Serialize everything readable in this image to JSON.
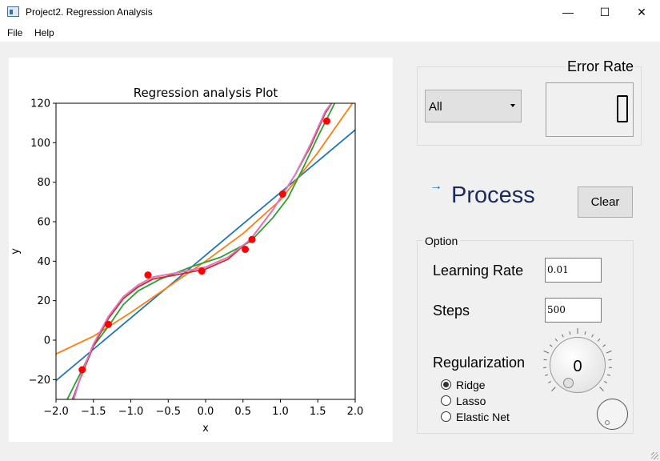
{
  "window": {
    "title": "Project2. Regression Analysis",
    "minimize_glyph": "—",
    "maximize_glyph": "☐",
    "close_glyph": "✕"
  },
  "menu": {
    "items": [
      "File",
      "Help"
    ]
  },
  "error_rate": {
    "title": "Error Rate",
    "value": "0"
  },
  "dataset_combo": {
    "selected": "All"
  },
  "process": {
    "label": "Process",
    "arrow_glyph": "→"
  },
  "clear_button": {
    "label": "Clear"
  },
  "options": {
    "title": "Option",
    "learning_rate_label": "Learning Rate",
    "learning_rate_value": "0.01",
    "steps_label": "Steps",
    "steps_value": "500",
    "regularization_label": "Regularization",
    "regularization_options": [
      "Ridge",
      "Lasso",
      "Elastic Net"
    ],
    "regularization_selected": "Ridge",
    "dial_value": "0"
  },
  "chart_data": {
    "type": "line",
    "title": "Regression analysis Plot",
    "xlabel": "x",
    "ylabel": "y",
    "xlim": [
      -2.0,
      2.0
    ],
    "ylim": [
      -30,
      120
    ],
    "xticks": [
      "−2.0",
      "−1.5",
      "−1.0",
      "−0.5",
      "0.0",
      "0.5",
      "1.0",
      "1.5",
      "2.0"
    ],
    "yticks": [
      "−20",
      "0",
      "20",
      "40",
      "60",
      "80",
      "100",
      "120"
    ],
    "points": {
      "color": "#ff0000",
      "x": [
        -1.65,
        -1.3,
        -0.77,
        -0.05,
        0.53,
        0.62,
        1.03,
        1.62
      ],
      "y": [
        -15,
        8,
        33,
        35,
        46,
        51,
        74,
        111
      ]
    },
    "series": [
      {
        "color": "#1f77b4",
        "x": [
          -2.0,
          2.0
        ],
        "y": [
          -20.5,
          106.5
        ]
      },
      {
        "color": "#ff7f0e",
        "x": [
          -2.0,
          -1.5,
          -1.0,
          -0.5,
          0.0,
          0.5,
          1.0,
          1.5,
          2.0
        ],
        "y": [
          -7,
          2,
          14,
          27,
          40,
          54,
          71,
          95,
          122
        ]
      },
      {
        "color": "#2ca02c",
        "x": [
          -1.85,
          -1.65,
          -1.5,
          -1.3,
          -1.1,
          -0.9,
          -0.6,
          -0.2,
          0.2,
          0.6,
          0.9,
          1.1,
          1.3,
          1.5,
          1.7,
          1.75
        ],
        "y": [
          -30,
          -15,
          -3,
          7,
          18,
          25,
          31,
          37,
          42,
          50,
          62,
          72,
          87,
          103,
          118,
          122
        ]
      },
      {
        "color": "#d62728",
        "x": [
          -1.78,
          -1.65,
          -1.5,
          -1.3,
          -1.1,
          -0.9,
          -0.7,
          -0.4,
          0.0,
          0.3,
          0.6,
          0.9,
          1.2,
          1.4,
          1.6,
          1.72
        ],
        "y": [
          -30,
          -17,
          -3,
          11,
          21,
          27,
          31,
          33,
          36,
          41,
          51,
          66,
          84,
          98,
          115,
          122
        ]
      },
      {
        "color": "#9467bd",
        "x": [
          -1.77,
          -1.65,
          -1.5,
          -1.3,
          -1.1,
          -0.9,
          -0.7,
          -0.4,
          0.0,
          0.3,
          0.6,
          0.9,
          1.2,
          1.4,
          1.6,
          1.72
        ],
        "y": [
          -30,
          -16,
          -2,
          12,
          22,
          28,
          32,
          34,
          37,
          42,
          51,
          66,
          84,
          99,
          116,
          122
        ]
      },
      {
        "color": "#e377c2",
        "x": [
          -1.76,
          -1.65,
          -1.5,
          -1.3,
          -1.1,
          -0.9,
          -0.7,
          -0.4,
          0.0,
          0.3,
          0.6,
          0.9,
          1.2,
          1.4,
          1.6,
          1.72
        ],
        "y": [
          -30,
          -16,
          -2,
          12,
          22,
          28,
          32,
          34,
          37,
          42,
          51,
          66,
          84,
          99,
          116,
          122
        ]
      }
    ]
  }
}
